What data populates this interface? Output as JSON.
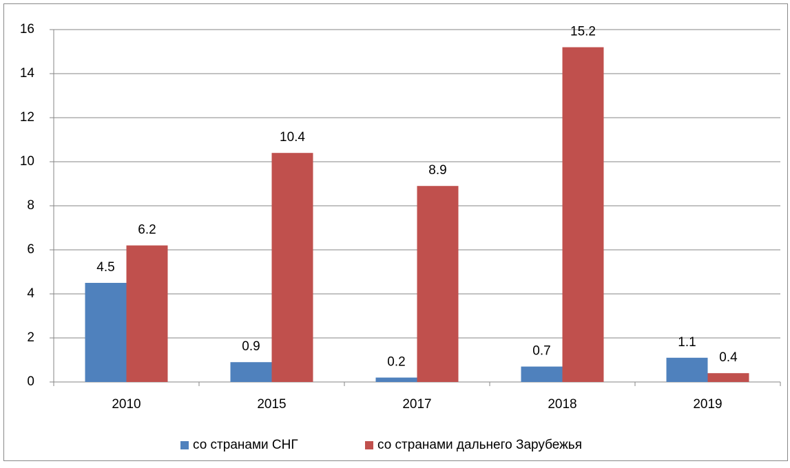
{
  "chart_data": {
    "type": "bar",
    "categories": [
      "2010",
      "2015",
      "2017",
      "2018",
      "2019"
    ],
    "series": [
      {
        "name": "со странами СНГ",
        "color": "#4f81bd",
        "values": [
          4.5,
          0.9,
          0.2,
          0.7,
          1.1
        ]
      },
      {
        "name": "со странами дальнего Зарубежья",
        "color": "#c0504d",
        "values": [
          6.2,
          10.4,
          8.9,
          15.2,
          0.4
        ]
      }
    ],
    "ylim": [
      0,
      16
    ],
    "yticks": [
      0,
      2,
      4,
      6,
      8,
      10,
      12,
      14,
      16
    ],
    "grid": true,
    "legend": "bottom"
  }
}
